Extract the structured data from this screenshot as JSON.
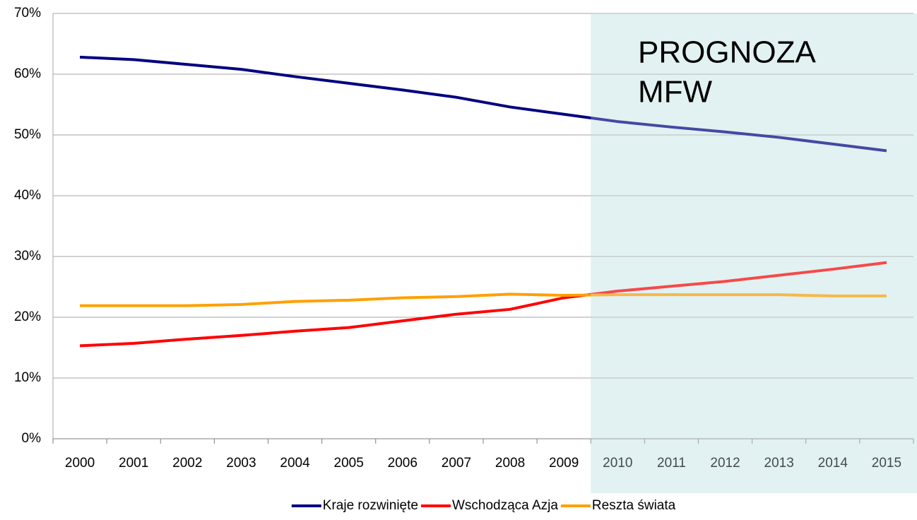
{
  "chart_data": {
    "type": "line",
    "categories": [
      "2000",
      "2001",
      "2002",
      "2003",
      "2004",
      "2005",
      "2006",
      "2007",
      "2008",
      "2009",
      "2010",
      "2011",
      "2012",
      "2013",
      "2014",
      "2015"
    ],
    "series": [
      {
        "name": "Kraje rozwinięte",
        "color": "#000080",
        "values": [
          62.8,
          62.4,
          61.6,
          60.8,
          59.6,
          58.5,
          57.4,
          56.2,
          54.6,
          53.4,
          52.2,
          51.3,
          50.5,
          49.6,
          48.5,
          47.4
        ]
      },
      {
        "name": "Wschodząca Azja",
        "color": "#ff0000",
        "values": [
          15.3,
          15.7,
          16.4,
          17.0,
          17.7,
          18.3,
          19.4,
          20.5,
          21.3,
          23.2,
          24.3,
          25.1,
          25.9,
          26.9,
          27.9,
          29.0
        ]
      },
      {
        "name": "Reszta świata",
        "color": "#ffa000",
        "values": [
          21.9,
          21.9,
          21.9,
          22.1,
          22.6,
          22.8,
          23.2,
          23.4,
          23.8,
          23.6,
          23.7,
          23.7,
          23.7,
          23.7,
          23.5,
          23.5
        ]
      }
    ],
    "ylim": [
      0,
      70
    ],
    "yticks": [
      {
        "value": 0,
        "label": "0%"
      },
      {
        "value": 10,
        "label": "10%"
      },
      {
        "value": 20,
        "label": "20%"
      },
      {
        "value": 30,
        "label": "30%"
      },
      {
        "value": 40,
        "label": "40%"
      },
      {
        "value": 50,
        "label": "50%"
      },
      {
        "value": 60,
        "label": "60%"
      },
      {
        "value": 70,
        "label": "70%"
      }
    ],
    "grid": true,
    "legend": "bottom",
    "shaded_region": {
      "from": "2010",
      "to": "2015",
      "color": "#e2f1f2"
    },
    "annotation": [
      "PROGNOZA",
      "MFW"
    ],
    "annotation_color": "#f23c14"
  }
}
